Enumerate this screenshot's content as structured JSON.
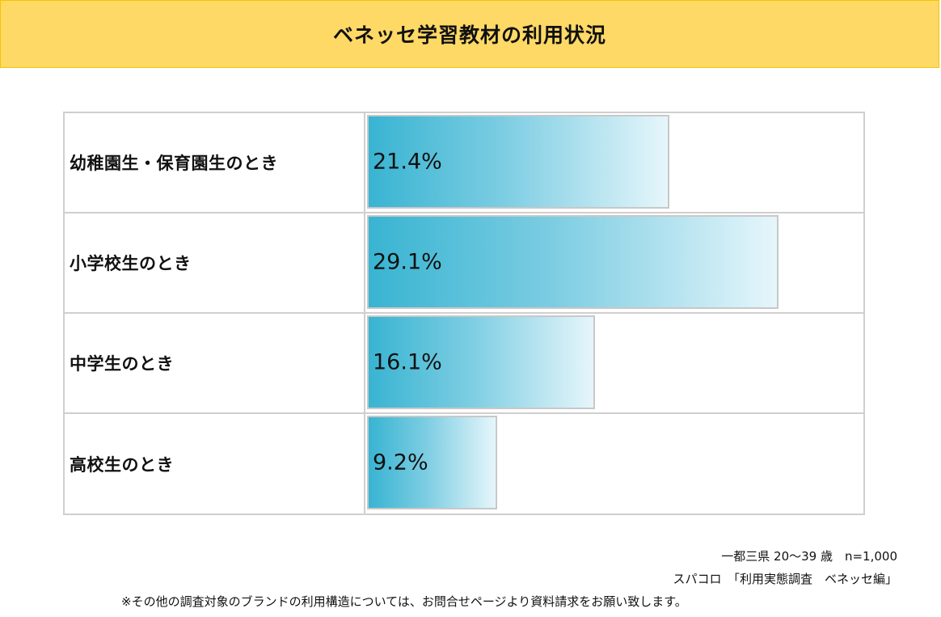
{
  "chart_data": {
    "type": "bar",
    "orientation": "horizontal",
    "title": "ベネッセ学習教材の利用状況",
    "categories": [
      "幼稚園生・保育園生のとき",
      "小学校生のとき",
      "中学生のとき",
      "高校生のとき"
    ],
    "values": [
      21.4,
      29.1,
      16.1,
      9.2
    ],
    "value_labels": [
      "21.4%",
      "29.1%",
      "16.1%",
      "9.2%"
    ],
    "unit": "%",
    "xlim": [
      0,
      35
    ],
    "legend": "none",
    "grid": false
  },
  "notes": {
    "survey": "一都三県 20～39 歳　n=1,000",
    "source": "スパコロ　「利用実態調査　ベネッセ編」",
    "footer": "※その他の調査対象のブランドの利用構造については、お問合せページより資料請求をお願い致します。"
  },
  "colors": {
    "title_bg": "#ffd966",
    "bar_start": "#38b4d2",
    "bar_end": "#e6f6fb"
  }
}
